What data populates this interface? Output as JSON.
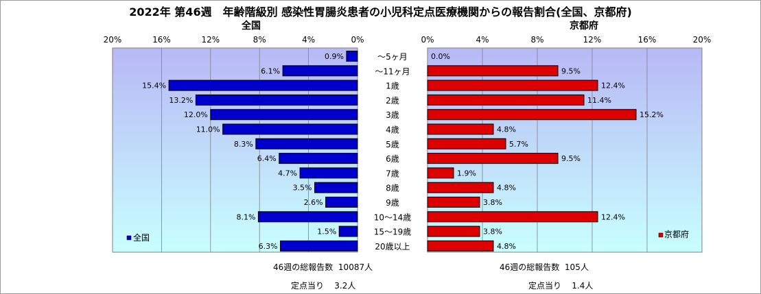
{
  "title": "2022年 第46週　年齢階級別 感染性胃腸炎患者の小児科定点医療機関からの報告割合(全国、京都府)",
  "left_panel": {
    "title": "全国",
    "legend": "全国",
    "total_label": "46週の総報告数",
    "total_value": "10087人",
    "per_site_label": "定点当り",
    "per_site_value": "3.2人"
  },
  "right_panel": {
    "title": "京都府",
    "legend": "京都府",
    "total_label": "46週の総報告数",
    "total_value": "105人",
    "per_site_label": "定点当り",
    "per_site_value": "1.4人"
  },
  "colors": {
    "national_bar": "#0000cc",
    "kyoto_bar": "#dd0000",
    "plot_bg_top": "#b8b8f5",
    "plot_bg_bottom": "#c8ffff"
  },
  "chart_data": {
    "type": "bar",
    "orientation": "horizontal-butterfly",
    "categories": [
      "～5ヶ月",
      "～11ヶ月",
      "1歳",
      "2歳",
      "3歳",
      "4歳",
      "5歳",
      "6歳",
      "7歳",
      "8歳",
      "9歳",
      "10～14歳",
      "15～19歳",
      "20歳以上"
    ],
    "xlim": [
      0,
      20
    ],
    "ticks": [
      "0%",
      "4%",
      "8%",
      "12%",
      "16%",
      "20%"
    ],
    "grid": true,
    "series": [
      {
        "name": "全国",
        "values": [
          0.9,
          6.1,
          15.4,
          13.2,
          12.0,
          11.0,
          8.3,
          6.4,
          4.7,
          3.5,
          2.6,
          8.1,
          1.5,
          6.3
        ]
      },
      {
        "name": "京都府",
        "values": [
          0.0,
          9.5,
          12.4,
          11.4,
          15.2,
          4.8,
          5.7,
          9.5,
          1.9,
          4.8,
          3.8,
          12.4,
          3.8,
          4.8
        ]
      }
    ],
    "value_labels": {
      "全国": [
        "0.9%",
        "6.1%",
        "15.4%",
        "13.2%",
        "12.0%",
        "11.0%",
        "8.3%",
        "6.4%",
        "4.7%",
        "3.5%",
        "2.6%",
        "8.1%",
        "1.5%",
        "6.3%"
      ],
      "京都府": [
        "0.0%",
        "9.5%",
        "12.4%",
        "11.4%",
        "15.2%",
        "4.8%",
        "5.7%",
        "9.5%",
        "1.9%",
        "4.8%",
        "3.8%",
        "12.4%",
        "3.8%",
        "4.8%"
      ]
    }
  }
}
